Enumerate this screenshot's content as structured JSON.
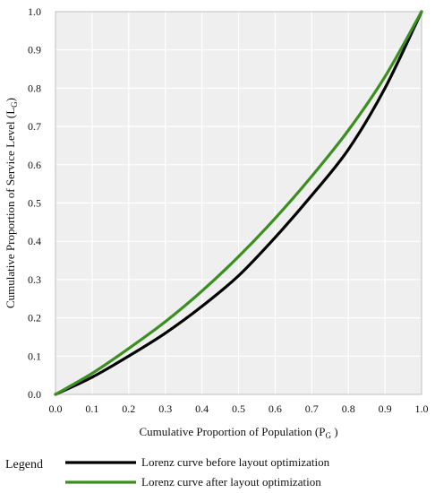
{
  "chart_data": {
    "type": "line",
    "title": "",
    "xlabel": "Cumulative Proportion of Population (P",
    "xlabel_sub": "G",
    "xlabel_end": " )",
    "ylabel": "Cumulative Proportion of Service Level (L",
    "ylabel_sub": "G",
    "ylabel_end": ")",
    "xlim": [
      0,
      1
    ],
    "ylim": [
      0,
      1
    ],
    "grid": true,
    "x_ticks": [
      "0.0",
      "0.1",
      "0.2",
      "0.3",
      "0.4",
      "0.5",
      "0.6",
      "0.7",
      "0.8",
      "0.9",
      "1.0"
    ],
    "y_ticks": [
      "0.0",
      "0.1",
      "0.2",
      "0.3",
      "0.4",
      "0.5",
      "0.6",
      "0.7",
      "0.8",
      "0.9",
      "1.0"
    ],
    "legend_position": "bottom",
    "legend_title": "Legend",
    "x": [
      0.0,
      0.1,
      0.2,
      0.3,
      0.4,
      0.5,
      0.6,
      0.7,
      0.8,
      0.9,
      1.0
    ],
    "series": [
      {
        "name": "Lorenz curve before layout optimization",
        "color": "#000000",
        "values": [
          0.0,
          0.045,
          0.1,
          0.16,
          0.23,
          0.31,
          0.41,
          0.52,
          0.64,
          0.8,
          1.0
        ]
      },
      {
        "name": "Lorenz curve after layout optimization",
        "color": "#3a8f1e",
        "values": [
          0.0,
          0.055,
          0.12,
          0.19,
          0.27,
          0.36,
          0.46,
          0.57,
          0.69,
          0.83,
          1.0
        ]
      }
    ]
  }
}
